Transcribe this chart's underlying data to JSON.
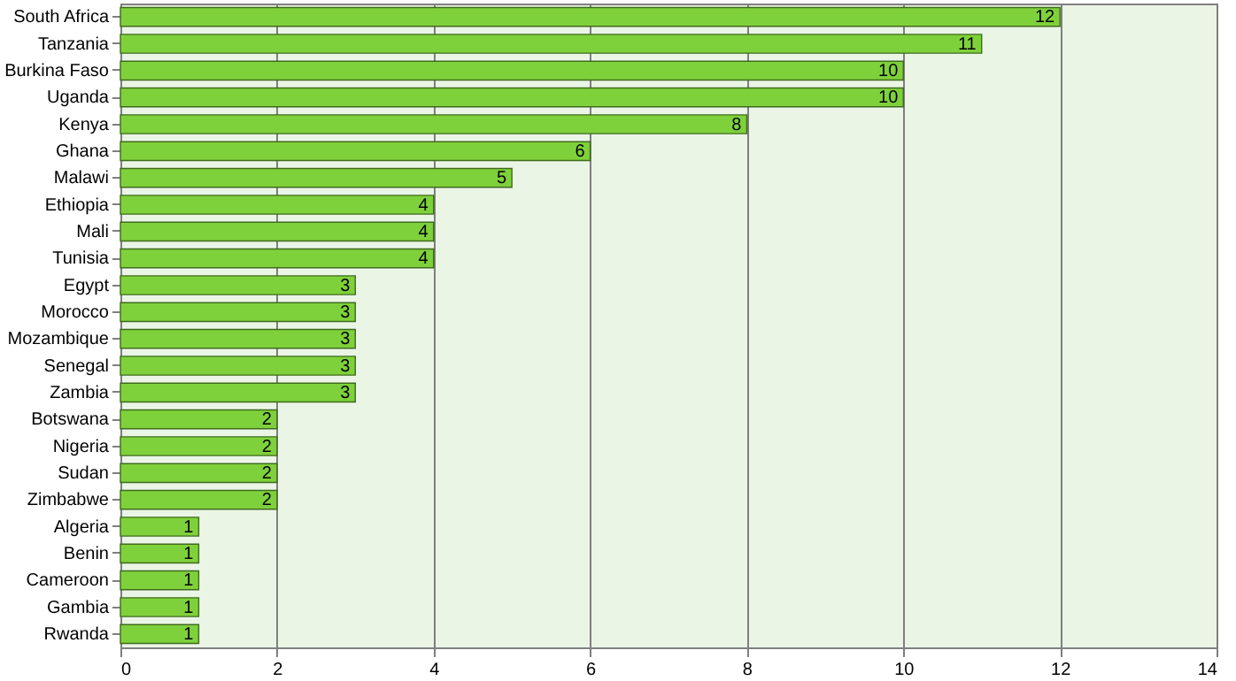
{
  "chart_data": {
    "type": "bar",
    "orientation": "horizontal",
    "categories": [
      "South Africa",
      "Tanzania",
      "Burkina Faso",
      "Uganda",
      "Kenya",
      "Ghana",
      "Malawi",
      "Ethiopia",
      "Mali",
      "Tunisia",
      "Egypt",
      "Morocco",
      "Mozambique",
      "Senegal",
      "Zambia",
      "Botswana",
      "Nigeria",
      "Sudan",
      "Zimbabwe",
      "Algeria",
      "Benin",
      "Cameroon",
      "Gambia",
      "Rwanda"
    ],
    "values": [
      12,
      11,
      10,
      10,
      8,
      6,
      5,
      4,
      4,
      4,
      3,
      3,
      3,
      3,
      3,
      2,
      2,
      2,
      2,
      1,
      1,
      1,
      1,
      1
    ],
    "color": "#7fd13b",
    "xlim": [
      0,
      14
    ],
    "xticks": [
      0,
      2,
      4,
      6,
      8,
      10,
      12,
      14
    ],
    "grid": "x",
    "data_labels": true
  }
}
